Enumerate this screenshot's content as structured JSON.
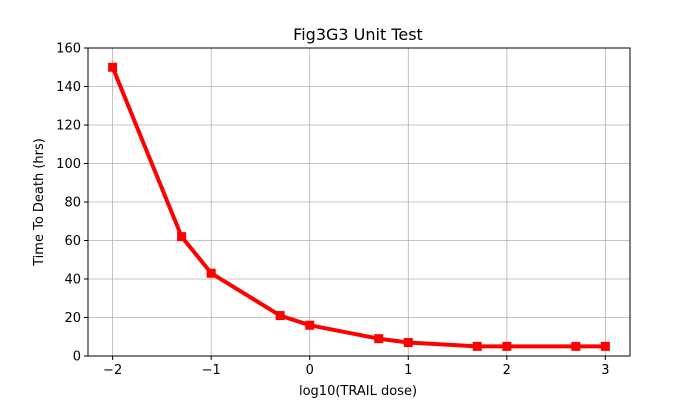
{
  "chart_data": {
    "type": "line",
    "title": "Fig3G3 Unit Test",
    "xlabel": "log10(TRAIL dose)",
    "ylabel": "Time To Death (hrs)",
    "xlim": [
      -2.25,
      3.25
    ],
    "ylim": [
      0,
      160
    ],
    "xticks": [
      -2,
      -1,
      0,
      1,
      2,
      3
    ],
    "xtick_labels": [
      "−2",
      "−1",
      "0",
      "1",
      "2",
      "3"
    ],
    "yticks": [
      0,
      20,
      40,
      60,
      80,
      100,
      120,
      140,
      160
    ],
    "ytick_labels": [
      "0",
      "20",
      "40",
      "60",
      "80",
      "100",
      "120",
      "140",
      "160"
    ],
    "grid": true,
    "series": [
      {
        "color": "#ff0000",
        "marker": "square",
        "x": [
          -2,
          -1.3,
          -1,
          -0.3,
          0,
          0.7,
          1,
          1.7,
          2,
          2.7,
          3
        ],
        "y": [
          150,
          62,
          43,
          21,
          16,
          9,
          7,
          5,
          5,
          5,
          5
        ]
      }
    ]
  }
}
